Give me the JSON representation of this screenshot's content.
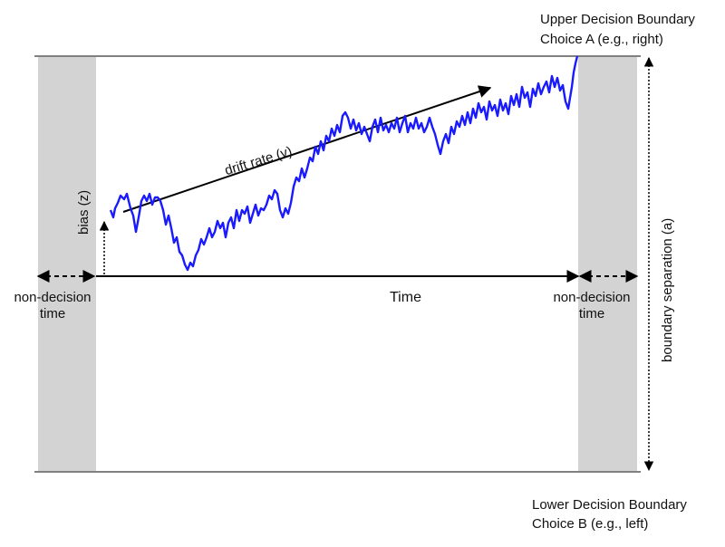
{
  "upper_boundary": {
    "title": "Upper Decision Boundary",
    "choice": "Choice A (e.g., right)"
  },
  "lower_boundary": {
    "title": "Lower Decision Boundary",
    "choice": "Choice B (e.g., left)"
  },
  "non_decision_left": {
    "line1": "non-decision",
    "line2": "time"
  },
  "non_decision_right": {
    "line1": "non-decision",
    "line2": "time"
  },
  "time_axis": {
    "label": "Time"
  },
  "bias": {
    "label": "bias (z)"
  },
  "drift": {
    "label": "drift rate (v)"
  },
  "boundary_separation": {
    "label": "boundary separation (a)"
  },
  "colors": {
    "path": "#1a1aff",
    "shade": "#d3d3d3",
    "lines": "#808080",
    "arrows": "#000000"
  }
}
